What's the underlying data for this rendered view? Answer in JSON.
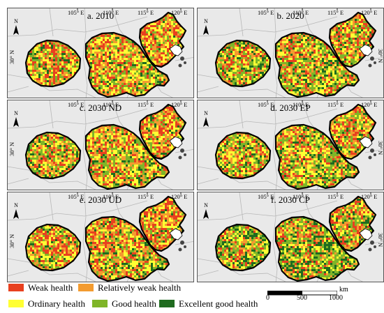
{
  "panels": [
    {
      "id": "a",
      "title": "a. 2010"
    },
    {
      "id": "b",
      "title": "b. 2020"
    },
    {
      "id": "c",
      "title": "c. 2030 ND"
    },
    {
      "id": "d",
      "title": "d. 2030 EP"
    },
    {
      "id": "e",
      "title": "e. 2030 UD"
    },
    {
      "id": "f",
      "title": "f. 2030 CP"
    }
  ],
  "longitude_ticks": [
    "105° E",
    "110° E",
    "115° E",
    "120° E"
  ],
  "latitude_tick": "30° N",
  "north_label": "N",
  "legend": [
    {
      "label": "Weak health",
      "color": "#e8401f"
    },
    {
      "label": "Relatively weak health",
      "color": "#f39b2f"
    },
    {
      "label": "Ordinary health",
      "color": "#ffff33"
    },
    {
      "label": "Good health",
      "color": "#7fb528"
    },
    {
      "label": "Excellent good health",
      "color": "#1f6b1f"
    }
  ],
  "scale_bar": {
    "unit": "km",
    "ticks": [
      "0",
      "500",
      "1000"
    ]
  }
}
